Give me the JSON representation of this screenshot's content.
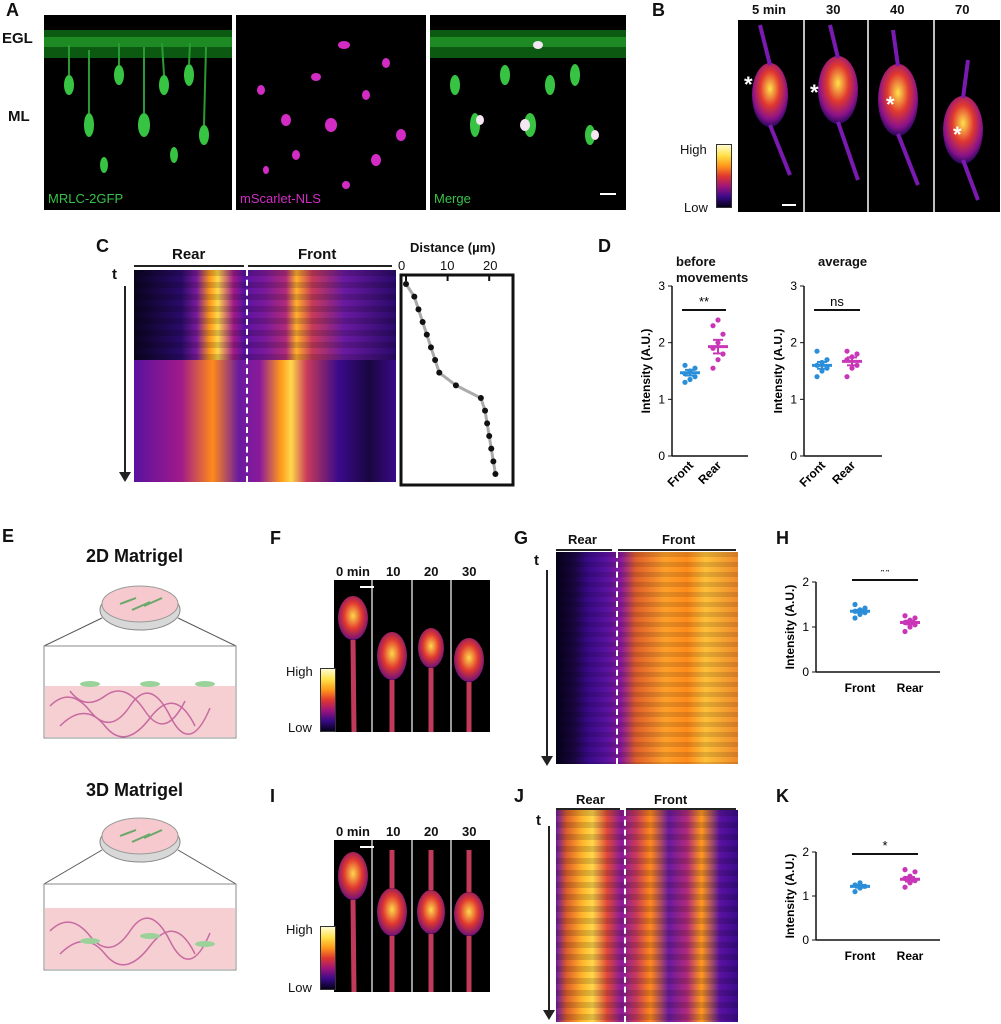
{
  "panels": {
    "A": {
      "label": "A",
      "layer_labels": [
        "EGL",
        "ML"
      ],
      "channels": [
        "MRLC-2GFP",
        "mScarlet-NLS",
        "Merge"
      ],
      "colors": {
        "green": "#39c24a",
        "magenta": "#d22cc4"
      }
    },
    "B": {
      "label": "B",
      "times": [
        "5 min",
        "30",
        "40",
        "70"
      ],
      "colorbar": {
        "high": "High",
        "low": "Low"
      }
    },
    "C": {
      "label": "C",
      "rear": "Rear",
      "front": "Front",
      "t_label": "t",
      "distance_title": "Distance (µm)",
      "distance_ticks": [
        "0",
        "10",
        "20"
      ]
    },
    "D": {
      "label": "D",
      "left_title": "before movements",
      "right_title": "average",
      "sig_left": "**",
      "sig_right": "ns"
    },
    "E": {
      "label": "E",
      "title_2d": "2D Matrigel",
      "title_3d": "3D Matrigel"
    },
    "F": {
      "label": "F",
      "times": [
        "0 min",
        "10",
        "20",
        "30"
      ],
      "colorbar": {
        "high": "High",
        "low": "Low"
      }
    },
    "G": {
      "label": "G",
      "rear": "Rear",
      "front": "Front",
      "t_label": "t"
    },
    "H": {
      "label": "H",
      "sig": "**"
    },
    "I": {
      "label": "I",
      "times": [
        "0 min",
        "10",
        "20",
        "30"
      ],
      "colorbar": {
        "high": "High",
        "low": "Low"
      }
    },
    "J": {
      "label": "J",
      "rear": "Rear",
      "front": "Front",
      "t_label": "t"
    },
    "K": {
      "label": "K",
      "sig": "*"
    }
  },
  "chart_data": [
    {
      "id": "C-distance",
      "type": "line",
      "title": "Distance (µm)",
      "xlim": [
        0,
        25
      ],
      "x_ticks": [
        0,
        10,
        20
      ],
      "y_direction": "time increases downward",
      "points": [
        [
          0,
          0
        ],
        [
          2,
          1
        ],
        [
          3,
          2
        ],
        [
          4,
          3
        ],
        [
          5,
          4
        ],
        [
          6,
          5
        ],
        [
          7,
          6
        ],
        [
          8,
          7
        ],
        [
          12,
          8
        ],
        [
          18,
          9
        ],
        [
          19,
          10
        ],
        [
          19.5,
          11
        ],
        [
          20,
          12
        ],
        [
          20.5,
          13
        ],
        [
          21,
          14
        ],
        [
          21.5,
          15
        ]
      ]
    },
    {
      "id": "D-before-movements",
      "type": "scatter",
      "title": "before movements",
      "ylabel": "Intensity (A.U.)",
      "ylim": [
        0,
        3
      ],
      "y_ticks": [
        0,
        1,
        2,
        3
      ],
      "categories": [
        "Front",
        "Rear"
      ],
      "series": [
        {
          "name": "Front",
          "color": "#2a8fd8",
          "mean": 1.47,
          "sem": 0.05,
          "values": [
            1.3,
            1.35,
            1.4,
            1.45,
            1.5,
            1.55,
            1.6
          ]
        },
        {
          "name": "Rear",
          "color": "#c936b8",
          "mean": 1.93,
          "sem": 0.12,
          "values": [
            1.55,
            1.7,
            1.8,
            1.9,
            2.0,
            2.15,
            2.3,
            2.4
          ]
        }
      ],
      "significance": "**"
    },
    {
      "id": "D-average",
      "type": "scatter",
      "title": "average",
      "ylabel": "Intensity (A.U.)",
      "ylim": [
        0,
        3
      ],
      "y_ticks": [
        0,
        1,
        2,
        3
      ],
      "categories": [
        "Front",
        "Rear"
      ],
      "series": [
        {
          "name": "Front",
          "color": "#2a8fd8",
          "mean": 1.6,
          "sem": 0.06,
          "values": [
            1.4,
            1.5,
            1.55,
            1.6,
            1.65,
            1.7,
            1.85
          ]
        },
        {
          "name": "Rear",
          "color": "#c936b8",
          "mean": 1.67,
          "sem": 0.07,
          "values": [
            1.4,
            1.55,
            1.6,
            1.7,
            1.75,
            1.8,
            1.85
          ]
        }
      ],
      "significance": "ns"
    },
    {
      "id": "H",
      "type": "scatter",
      "ylabel": "Intensity (A.U.)",
      "ylim": [
        0,
        2
      ],
      "y_ticks": [
        0,
        1,
        2
      ],
      "categories": [
        "Front",
        "Rear"
      ],
      "series": [
        {
          "name": "Front",
          "color": "#2a8fd8",
          "mean": 1.35,
          "sem": 0.03,
          "values": [
            1.2,
            1.28,
            1.32,
            1.35,
            1.38,
            1.42,
            1.5
          ]
        },
        {
          "name": "Rear",
          "color": "#c936b8",
          "mean": 1.1,
          "sem": 0.04,
          "values": [
            0.9,
            1.0,
            1.05,
            1.1,
            1.15,
            1.2,
            1.25
          ]
        }
      ],
      "significance": "**"
    },
    {
      "id": "K",
      "type": "scatter",
      "ylabel": "Intensity (A.U.)",
      "ylim": [
        0,
        2
      ],
      "y_ticks": [
        0,
        1,
        2
      ],
      "categories": [
        "Front",
        "Rear"
      ],
      "series": [
        {
          "name": "Front",
          "color": "#2a8fd8",
          "mean": 1.22,
          "sem": 0.03,
          "values": [
            1.1,
            1.18,
            1.22,
            1.25,
            1.3
          ]
        },
        {
          "name": "Rear",
          "color": "#c936b8",
          "mean": 1.38,
          "sem": 0.05,
          "values": [
            1.2,
            1.3,
            1.35,
            1.4,
            1.45,
            1.55,
            1.6
          ]
        }
      ],
      "significance": "*"
    }
  ]
}
